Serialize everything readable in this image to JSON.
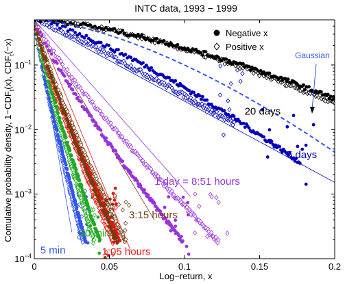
{
  "chart_data": {
    "type": "scatter",
    "title": "INTC data, 1993 − 1999",
    "xlabel": "Log−return, x",
    "ylabel_parts": [
      "Comulative probability density, 1−CDF",
      "t",
      "(x), CDF",
      "t",
      "(−x)"
    ],
    "xlim": [
      0,
      0.2
    ],
    "ylim": [
      0.0001,
      0.5
    ],
    "yscale": "log",
    "x_ticks": [
      0,
      0.05,
      0.1,
      0.15,
      0.2
    ],
    "x_tick_labels": [
      "0",
      "0.05",
      "0.1",
      "0.15",
      "0.2"
    ],
    "y_ticks": [
      0.0001,
      0.001,
      0.01,
      0.1
    ],
    "y_tick_labels": [
      {
        "base": "10",
        "exp": "−4"
      },
      {
        "base": "10",
        "exp": "−3"
      },
      {
        "base": "10",
        "exp": "−2"
      },
      {
        "base": "10",
        "exp": "−1"
      }
    ],
    "legend": {
      "position": "top-right",
      "entries": [
        {
          "label": "Negative x",
          "marker": "filled-circle"
        },
        {
          "label": "Positive x",
          "marker": "open-diamond"
        }
      ]
    },
    "gaussian_label": "Gaussian",
    "series": [
      {
        "label": "5 min",
        "color": "#3355ee",
        "neg_end": 0.036,
        "pos_end": 0.034,
        "fit_decay": 0.0033,
        "fit_end": 0.025,
        "label_x": 0.004,
        "label_y": 0.00012
      },
      {
        "label": "30 min",
        "color": "#22aa22",
        "neg_end": 0.046,
        "pos_end": 0.042,
        "fit_decay": 0.0065,
        "fit_end": 0.049,
        "label_x": 0.03,
        "label_y": 0.00022
      },
      {
        "label": "1:05 hours",
        "color": "#ee1111",
        "neg_end": 0.06,
        "pos_end": 0.055,
        "fit_decay": 0.0078,
        "fit_end": 0.064,
        "label_x": 0.045,
        "label_y": 0.000115
      },
      {
        "label": "3:15 hours",
        "color": "#7a3a10",
        "neg_end": 0.058,
        "pos_end": 0.064,
        "fit_decay": 0.0112,
        "fit_end": 0.08,
        "label_x": 0.063,
        "label_y": 0.00042
      },
      {
        "label": "1 day = 8:51 hours",
        "color": "#9933dd",
        "neg_end": 0.104,
        "pos_end": 0.129,
        "fit_decay": 0.0165,
        "fit_end": 0.104,
        "label_x": 0.08,
        "label_y": 0.0014
      },
      {
        "label": "5 days",
        "color": "#0000bb",
        "neg_end": 0.186,
        "pos_end": 0.14,
        "fit_decay": 0.0345,
        "fit_end": 0.2,
        "label_x": 0.168,
        "label_y": 0.0036
      },
      {
        "label": "20 days",
        "color": "#000000",
        "neg_end": 0.2,
        "pos_end": 0.2,
        "fit_decay": 0.0,
        "fit_end": 0.2,
        "label_x": 0.14,
        "label_y": 0.017
      }
    ]
  }
}
